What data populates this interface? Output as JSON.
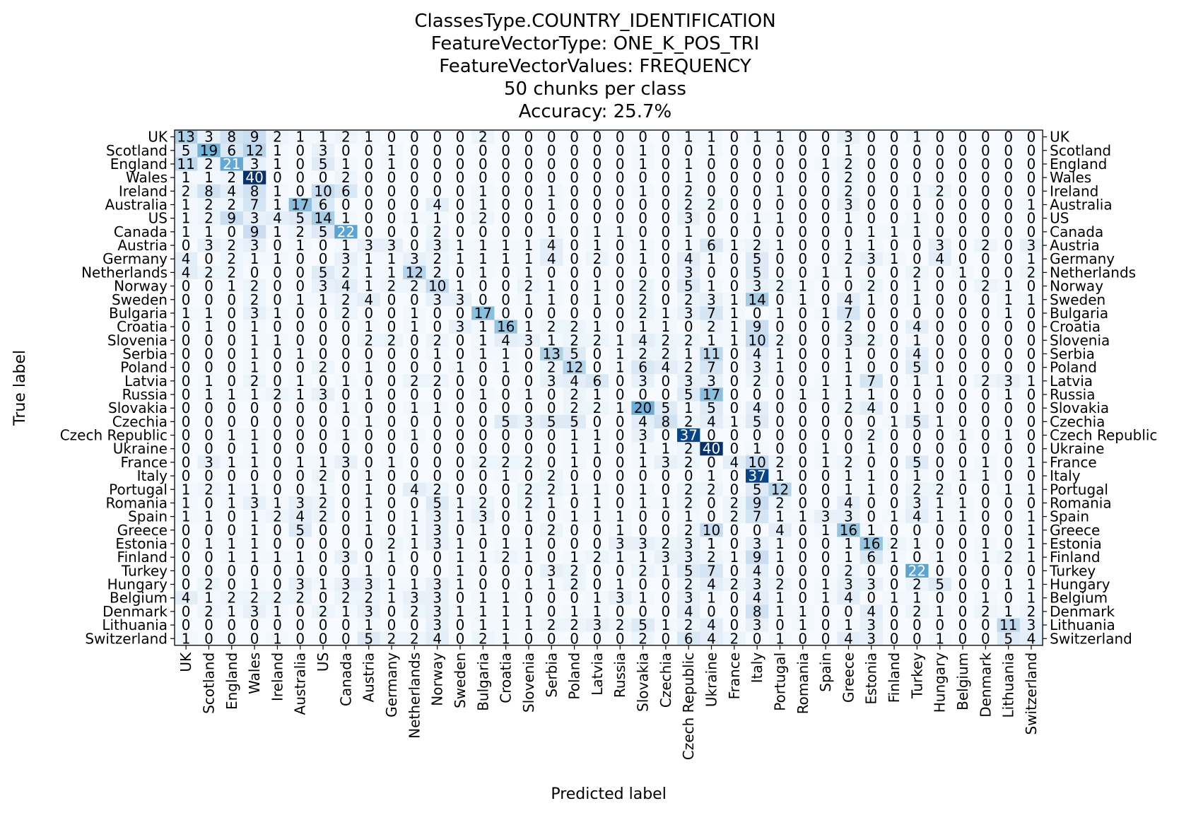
{
  "chart_data": {
    "type": "heatmap",
    "title_lines": [
      "ClassesType.COUNTRY_IDENTIFICATION",
      "FeatureVectorType: ONE_K_POS_TRI",
      "FeatureVectorValues: FREQUENCY",
      "50 chunks per class",
      "Accuracy: 25.7%"
    ],
    "xlabel": "Predicted label",
    "ylabel": "True label",
    "labels": [
      "UK",
      "Scotland",
      "England",
      "Wales",
      "Ireland",
      "Australia",
      "US",
      "Canada",
      "Austria",
      "Germany",
      "Netherlands",
      "Norway",
      "Sweden",
      "Bulgaria",
      "Croatia",
      "Slovenia",
      "Serbia",
      "Poland",
      "Latvia",
      "Russia",
      "Slovakia",
      "Czechia",
      "Czech Republic",
      "Ukraine",
      "France",
      "Italy",
      "Portugal",
      "Romania",
      "Spain",
      "Greece",
      "Estonia",
      "Finland",
      "Turkey",
      "Hungary",
      "Belgium",
      "Denmark",
      "Lithuania",
      "Switzerland"
    ],
    "colormap": "Blues",
    "vmin": 0,
    "vmax": 40,
    "matrix": [
      [
        13,
        3,
        8,
        9,
        2,
        1,
        1,
        2,
        1,
        0,
        0,
        0,
        0,
        2,
        0,
        0,
        0,
        0,
        0,
        0,
        0,
        0,
        1,
        1,
        0,
        1,
        1,
        0,
        0,
        3,
        0,
        0,
        1,
        0,
        0,
        0,
        0,
        0
      ],
      [
        5,
        19,
        6,
        12,
        1,
        0,
        3,
        0,
        0,
        1,
        0,
        0,
        0,
        0,
        0,
        0,
        0,
        0,
        0,
        0,
        1,
        0,
        0,
        1,
        0,
        0,
        0,
        0,
        0,
        1,
        0,
        0,
        0,
        0,
        0,
        0,
        0,
        0
      ],
      [
        11,
        2,
        21,
        3,
        1,
        0,
        5,
        1,
        0,
        1,
        0,
        0,
        0,
        0,
        0,
        0,
        0,
        0,
        0,
        0,
        1,
        0,
        1,
        0,
        0,
        0,
        0,
        0,
        1,
        2,
        0,
        0,
        0,
        0,
        0,
        0,
        0,
        0
      ],
      [
        1,
        1,
        2,
        40,
        0,
        0,
        0,
        2,
        0,
        0,
        0,
        0,
        0,
        0,
        0,
        0,
        0,
        0,
        0,
        0,
        0,
        0,
        1,
        0,
        0,
        0,
        0,
        0,
        0,
        2,
        0,
        0,
        0,
        0,
        0,
        0,
        0,
        0
      ],
      [
        2,
        8,
        4,
        8,
        1,
        0,
        10,
        6,
        0,
        0,
        0,
        0,
        0,
        1,
        0,
        0,
        1,
        0,
        0,
        0,
        1,
        0,
        2,
        0,
        0,
        0,
        1,
        0,
        0,
        2,
        0,
        0,
        1,
        2,
        0,
        0,
        0,
        0
      ],
      [
        1,
        2,
        2,
        7,
        1,
        17,
        6,
        0,
        0,
        0,
        0,
        4,
        0,
        1,
        0,
        0,
        1,
        0,
        0,
        0,
        0,
        0,
        2,
        2,
        0,
        0,
        0,
        0,
        0,
        3,
        0,
        0,
        0,
        0,
        0,
        0,
        0,
        1
      ],
      [
        1,
        2,
        9,
        3,
        4,
        5,
        14,
        1,
        0,
        0,
        1,
        1,
        0,
        2,
        0,
        0,
        0,
        0,
        0,
        0,
        0,
        0,
        3,
        0,
        0,
        1,
        1,
        0,
        0,
        1,
        0,
        0,
        1,
        0,
        0,
        0,
        0,
        0
      ],
      [
        1,
        1,
        0,
        9,
        1,
        2,
        5,
        22,
        0,
        0,
        0,
        2,
        0,
        0,
        0,
        0,
        1,
        0,
        1,
        1,
        0,
        0,
        1,
        0,
        0,
        0,
        0,
        0,
        0,
        0,
        1,
        1,
        1,
        0,
        0,
        0,
        0,
        0
      ],
      [
        0,
        3,
        2,
        3,
        0,
        1,
        0,
        1,
        3,
        3,
        0,
        3,
        1,
        1,
        1,
        1,
        4,
        0,
        1,
        0,
        1,
        0,
        1,
        6,
        1,
        2,
        1,
        0,
        0,
        1,
        1,
        0,
        0,
        3,
        0,
        2,
        0,
        3
      ],
      [
        4,
        0,
        2,
        1,
        1,
        0,
        0,
        3,
        1,
        1,
        3,
        2,
        1,
        1,
        1,
        1,
        4,
        0,
        2,
        0,
        1,
        0,
        4,
        1,
        0,
        5,
        0,
        0,
        0,
        2,
        3,
        1,
        0,
        4,
        0,
        0,
        0,
        1
      ],
      [
        4,
        2,
        2,
        0,
        0,
        0,
        5,
        2,
        1,
        1,
        12,
        2,
        0,
        1,
        0,
        1,
        0,
        0,
        0,
        0,
        0,
        0,
        3,
        0,
        0,
        5,
        0,
        0,
        1,
        1,
        0,
        0,
        2,
        0,
        1,
        0,
        0,
        2
      ],
      [
        0,
        0,
        1,
        2,
        0,
        0,
        3,
        4,
        1,
        2,
        2,
        10,
        1,
        0,
        0,
        2,
        1,
        0,
        1,
        0,
        2,
        0,
        5,
        1,
        0,
        3,
        2,
        1,
        0,
        0,
        2,
        0,
        1,
        0,
        0,
        2,
        1,
        0
      ],
      [
        0,
        0,
        0,
        2,
        0,
        1,
        1,
        2,
        4,
        0,
        0,
        3,
        3,
        0,
        0,
        1,
        1,
        0,
        1,
        0,
        2,
        0,
        2,
        3,
        1,
        14,
        0,
        1,
        0,
        4,
        1,
        0,
        1,
        0,
        0,
        0,
        1,
        1
      ],
      [
        1,
        1,
        0,
        3,
        1,
        0,
        0,
        2,
        0,
        0,
        1,
        0,
        0,
        17,
        0,
        0,
        0,
        0,
        0,
        0,
        2,
        1,
        3,
        7,
        1,
        0,
        1,
        0,
        1,
        7,
        0,
        0,
        0,
        0,
        0,
        0,
        1,
        0
      ],
      [
        0,
        1,
        0,
        1,
        0,
        0,
        0,
        0,
        1,
        0,
        1,
        0,
        3,
        1,
        16,
        1,
        2,
        2,
        1,
        0,
        1,
        1,
        0,
        2,
        1,
        9,
        0,
        0,
        0,
        2,
        0,
        0,
        4,
        0,
        0,
        0,
        0,
        0
      ],
      [
        0,
        0,
        0,
        1,
        1,
        0,
        0,
        0,
        2,
        2,
        0,
        2,
        0,
        1,
        4,
        3,
        1,
        2,
        2,
        1,
        4,
        2,
        2,
        1,
        1,
        10,
        2,
        0,
        0,
        3,
        2,
        0,
        1,
        0,
        0,
        0,
        0,
        0
      ],
      [
        0,
        0,
        0,
        1,
        0,
        1,
        0,
        0,
        0,
        0,
        0,
        1,
        0,
        1,
        1,
        0,
        13,
        5,
        0,
        1,
        2,
        2,
        1,
        11,
        0,
        4,
        1,
        0,
        0,
        1,
        0,
        0,
        4,
        0,
        0,
        0,
        0,
        0
      ],
      [
        0,
        0,
        0,
        1,
        0,
        0,
        2,
        0,
        1,
        0,
        0,
        0,
        1,
        0,
        1,
        0,
        2,
        12,
        0,
        1,
        6,
        4,
        2,
        7,
        0,
        3,
        1,
        0,
        0,
        1,
        0,
        0,
        5,
        0,
        0,
        0,
        0,
        0
      ],
      [
        0,
        1,
        0,
        2,
        0,
        1,
        0,
        1,
        0,
        0,
        2,
        2,
        0,
        0,
        0,
        0,
        3,
        4,
        6,
        0,
        3,
        0,
        3,
        3,
        0,
        2,
        0,
        0,
        1,
        1,
        7,
        0,
        1,
        1,
        0,
        2,
        3,
        1
      ],
      [
        0,
        1,
        1,
        1,
        2,
        1,
        3,
        0,
        1,
        0,
        0,
        0,
        0,
        1,
        0,
        1,
        0,
        2,
        1,
        0,
        0,
        0,
        5,
        17,
        0,
        0,
        0,
        1,
        1,
        1,
        1,
        0,
        0,
        0,
        0,
        0,
        1,
        0
      ],
      [
        0,
        0,
        0,
        0,
        0,
        0,
        0,
        1,
        0,
        0,
        1,
        1,
        0,
        0,
        0,
        0,
        0,
        2,
        2,
        1,
        20,
        5,
        1,
        5,
        0,
        4,
        0,
        0,
        0,
        2,
        4,
        0,
        1,
        0,
        0,
        0,
        0,
        0
      ],
      [
        0,
        0,
        0,
        0,
        0,
        0,
        0,
        0,
        1,
        0,
        0,
        0,
        0,
        0,
        5,
        3,
        5,
        5,
        0,
        0,
        4,
        8,
        2,
        4,
        1,
        5,
        0,
        0,
        0,
        0,
        0,
        1,
        5,
        1,
        0,
        0,
        0,
        0
      ],
      [
        0,
        0,
        1,
        1,
        0,
        0,
        0,
        1,
        0,
        0,
        1,
        0,
        0,
        0,
        0,
        0,
        0,
        1,
        1,
        0,
        3,
        0,
        37,
        0,
        0,
        0,
        0,
        0,
        0,
        0,
        2,
        0,
        0,
        0,
        1,
        0,
        1,
        0
      ],
      [
        0,
        0,
        0,
        1,
        0,
        0,
        0,
        0,
        0,
        0,
        0,
        0,
        0,
        0,
        0,
        0,
        0,
        1,
        1,
        0,
        1,
        1,
        2,
        40,
        0,
        1,
        0,
        0,
        1,
        0,
        1,
        0,
        0,
        0,
        0,
        0,
        0,
        0
      ],
      [
        0,
        3,
        1,
        1,
        0,
        1,
        1,
        3,
        0,
        1,
        0,
        0,
        0,
        2,
        2,
        2,
        0,
        1,
        0,
        0,
        1,
        3,
        2,
        0,
        4,
        10,
        2,
        0,
        1,
        2,
        0,
        0,
        5,
        0,
        0,
        1,
        0,
        1
      ],
      [
        0,
        0,
        0,
        0,
        0,
        0,
        2,
        0,
        1,
        0,
        0,
        0,
        0,
        0,
        1,
        0,
        2,
        0,
        0,
        0,
        0,
        0,
        0,
        1,
        0,
        37,
        1,
        0,
        0,
        1,
        1,
        0,
        1,
        0,
        1,
        1,
        0,
        0
      ],
      [
        1,
        2,
        1,
        1,
        0,
        0,
        1,
        0,
        1,
        0,
        4,
        2,
        0,
        0,
        0,
        2,
        2,
        1,
        1,
        0,
        1,
        0,
        2,
        2,
        0,
        5,
        12,
        0,
        0,
        1,
        1,
        0,
        2,
        2,
        0,
        0,
        1,
        1
      ],
      [
        1,
        0,
        1,
        3,
        1,
        3,
        2,
        0,
        1,
        0,
        0,
        5,
        1,
        2,
        0,
        2,
        1,
        0,
        1,
        0,
        1,
        1,
        2,
        0,
        2,
        9,
        2,
        0,
        0,
        4,
        0,
        0,
        3,
        1,
        1,
        0,
        0,
        0
      ],
      [
        1,
        1,
        0,
        1,
        2,
        4,
        2,
        0,
        1,
        0,
        1,
        3,
        1,
        3,
        0,
        1,
        0,
        1,
        1,
        1,
        0,
        0,
        1,
        0,
        2,
        7,
        1,
        1,
        3,
        3,
        0,
        1,
        4,
        1,
        1,
        0,
        0,
        1
      ],
      [
        0,
        0,
        0,
        1,
        0,
        5,
        0,
        0,
        1,
        0,
        1,
        3,
        0,
        1,
        0,
        0,
        2,
        0,
        0,
        1,
        0,
        0,
        2,
        10,
        0,
        0,
        4,
        0,
        1,
        16,
        1,
        0,
        0,
        0,
        0,
        0,
        0,
        1
      ],
      [
        0,
        1,
        1,
        1,
        0,
        0,
        0,
        0,
        0,
        2,
        1,
        3,
        1,
        0,
        1,
        1,
        0,
        0,
        0,
        3,
        3,
        2,
        3,
        1,
        0,
        3,
        1,
        0,
        0,
        1,
        16,
        2,
        1,
        0,
        0,
        1,
        0,
        1
      ],
      [
        0,
        0,
        1,
        1,
        1,
        1,
        0,
        3,
        0,
        1,
        0,
        0,
        1,
        1,
        2,
        1,
        0,
        1,
        2,
        1,
        1,
        3,
        3,
        2,
        1,
        9,
        1,
        0,
        0,
        1,
        6,
        1,
        0,
        1,
        0,
        1,
        2,
        1
      ],
      [
        0,
        0,
        0,
        0,
        0,
        0,
        0,
        0,
        1,
        0,
        0,
        0,
        1,
        0,
        0,
        0,
        3,
        2,
        0,
        0,
        2,
        1,
        5,
        7,
        0,
        4,
        0,
        0,
        0,
        2,
        0,
        0,
        22,
        0,
        0,
        0,
        0,
        0
      ],
      [
        0,
        2,
        0,
        1,
        0,
        3,
        1,
        3,
        3,
        1,
        1,
        3,
        1,
        0,
        0,
        1,
        1,
        2,
        0,
        1,
        0,
        0,
        2,
        4,
        2,
        3,
        2,
        0,
        1,
        3,
        3,
        0,
        2,
        5,
        0,
        0,
        1,
        1
      ],
      [
        4,
        1,
        2,
        2,
        2,
        2,
        0,
        2,
        2,
        1,
        3,
        3,
        0,
        1,
        1,
        0,
        0,
        0,
        1,
        3,
        1,
        0,
        3,
        1,
        0,
        4,
        1,
        0,
        1,
        4,
        0,
        1,
        1,
        0,
        0,
        1,
        0,
        1
      ],
      [
        0,
        2,
        1,
        3,
        1,
        0,
        2,
        1,
        3,
        0,
        2,
        3,
        1,
        1,
        1,
        1,
        0,
        1,
        1,
        0,
        0,
        0,
        4,
        0,
        0,
        8,
        1,
        1,
        0,
        0,
        4,
        0,
        2,
        1,
        0,
        2,
        1,
        2
      ],
      [
        0,
        0,
        0,
        0,
        0,
        0,
        0,
        0,
        1,
        0,
        0,
        3,
        0,
        1,
        1,
        1,
        2,
        2,
        3,
        2,
        5,
        1,
        2,
        4,
        0,
        3,
        0,
        1,
        0,
        1,
        3,
        0,
        0,
        0,
        0,
        0,
        11,
        3
      ],
      [
        1,
        0,
        0,
        0,
        1,
        0,
        0,
        0,
        5,
        2,
        2,
        4,
        0,
        2,
        1,
        0,
        0,
        0,
        0,
        0,
        2,
        0,
        6,
        4,
        2,
        0,
        1,
        0,
        0,
        4,
        3,
        0,
        0,
        1,
        0,
        0,
        5,
        4
      ]
    ]
  }
}
